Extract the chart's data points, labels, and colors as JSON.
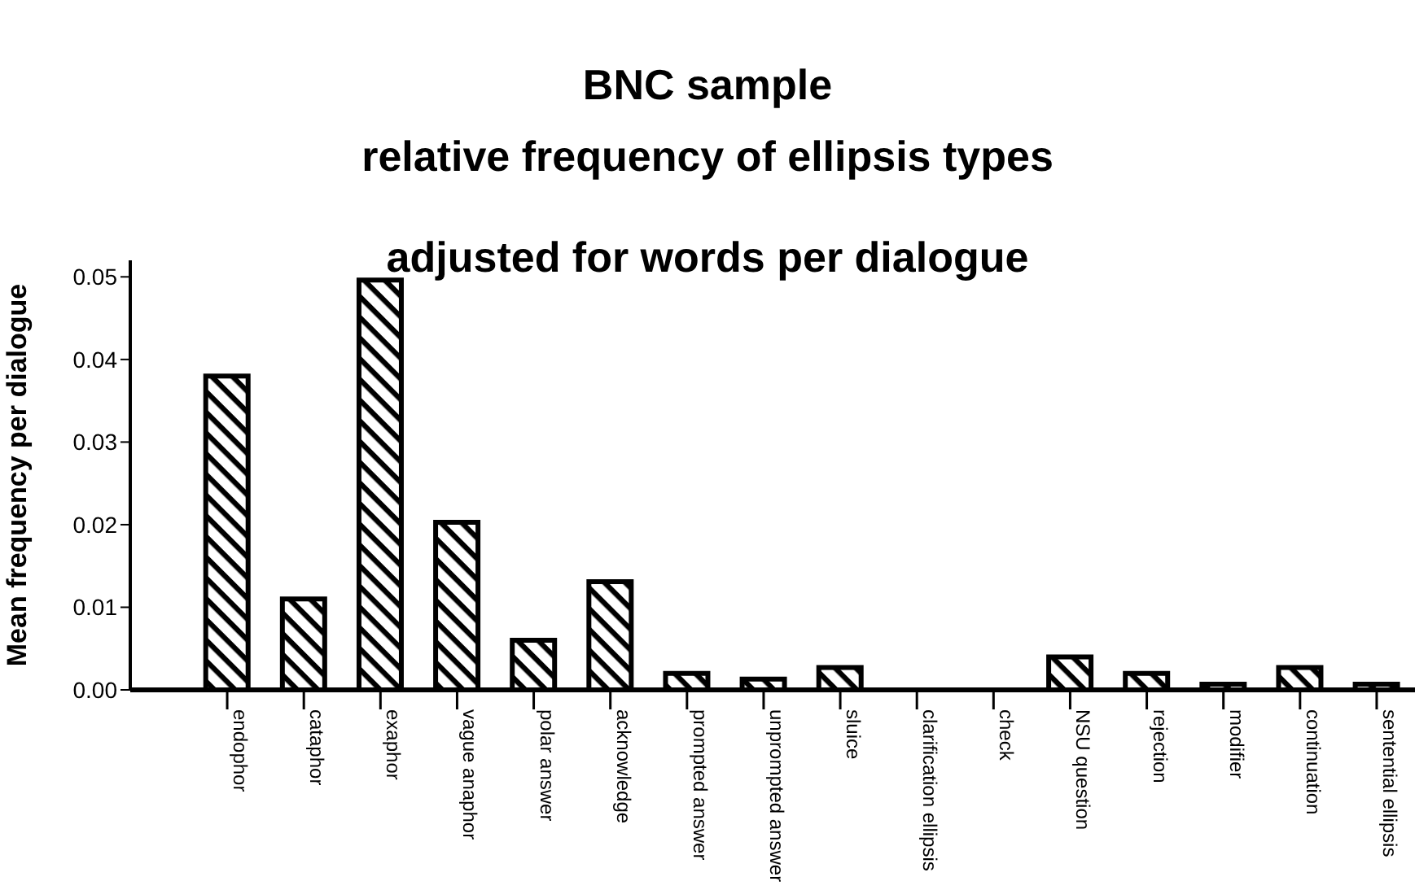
{
  "chart_data": {
    "type": "bar",
    "title": "BNC sample",
    "subtitle": "relative frequency of ellipsis types",
    "annotations": [
      "adjusted for words per dialogue"
    ],
    "ylabel": "Mean frequency per dialogue",
    "categories": [
      "endophor",
      "cataphor",
      "exaphor",
      "vague anaphor",
      "polar answer",
      "acknowledge",
      "prompted answer",
      "unprompted answer",
      "sluice",
      "clarification ellipsis",
      "check",
      "NSU question",
      "rejection",
      "modifier",
      "continuation",
      "sentential ellipsis"
    ],
    "values": [
      0.038,
      0.011,
      0.0496,
      0.0203,
      0.006,
      0.0131,
      0.002,
      0.0013,
      0.0027,
      0,
      0,
      0.004,
      0.002,
      0.0007,
      0.0027,
      0.0007
    ],
    "color": "#000000",
    "ylim": [
      0,
      0.052
    ],
    "yticks": [
      {
        "value": 0,
        "label": "0.00"
      },
      {
        "value": 0.01,
        "label": "0.01"
      },
      {
        "value": 0.02,
        "label": "0.02"
      },
      {
        "value": 0.03,
        "label": "0.03"
      },
      {
        "value": 0.04,
        "label": "0.04"
      },
      {
        "value": 0.05,
        "label": "0.05"
      }
    ],
    "grid": false,
    "legend": false
  }
}
